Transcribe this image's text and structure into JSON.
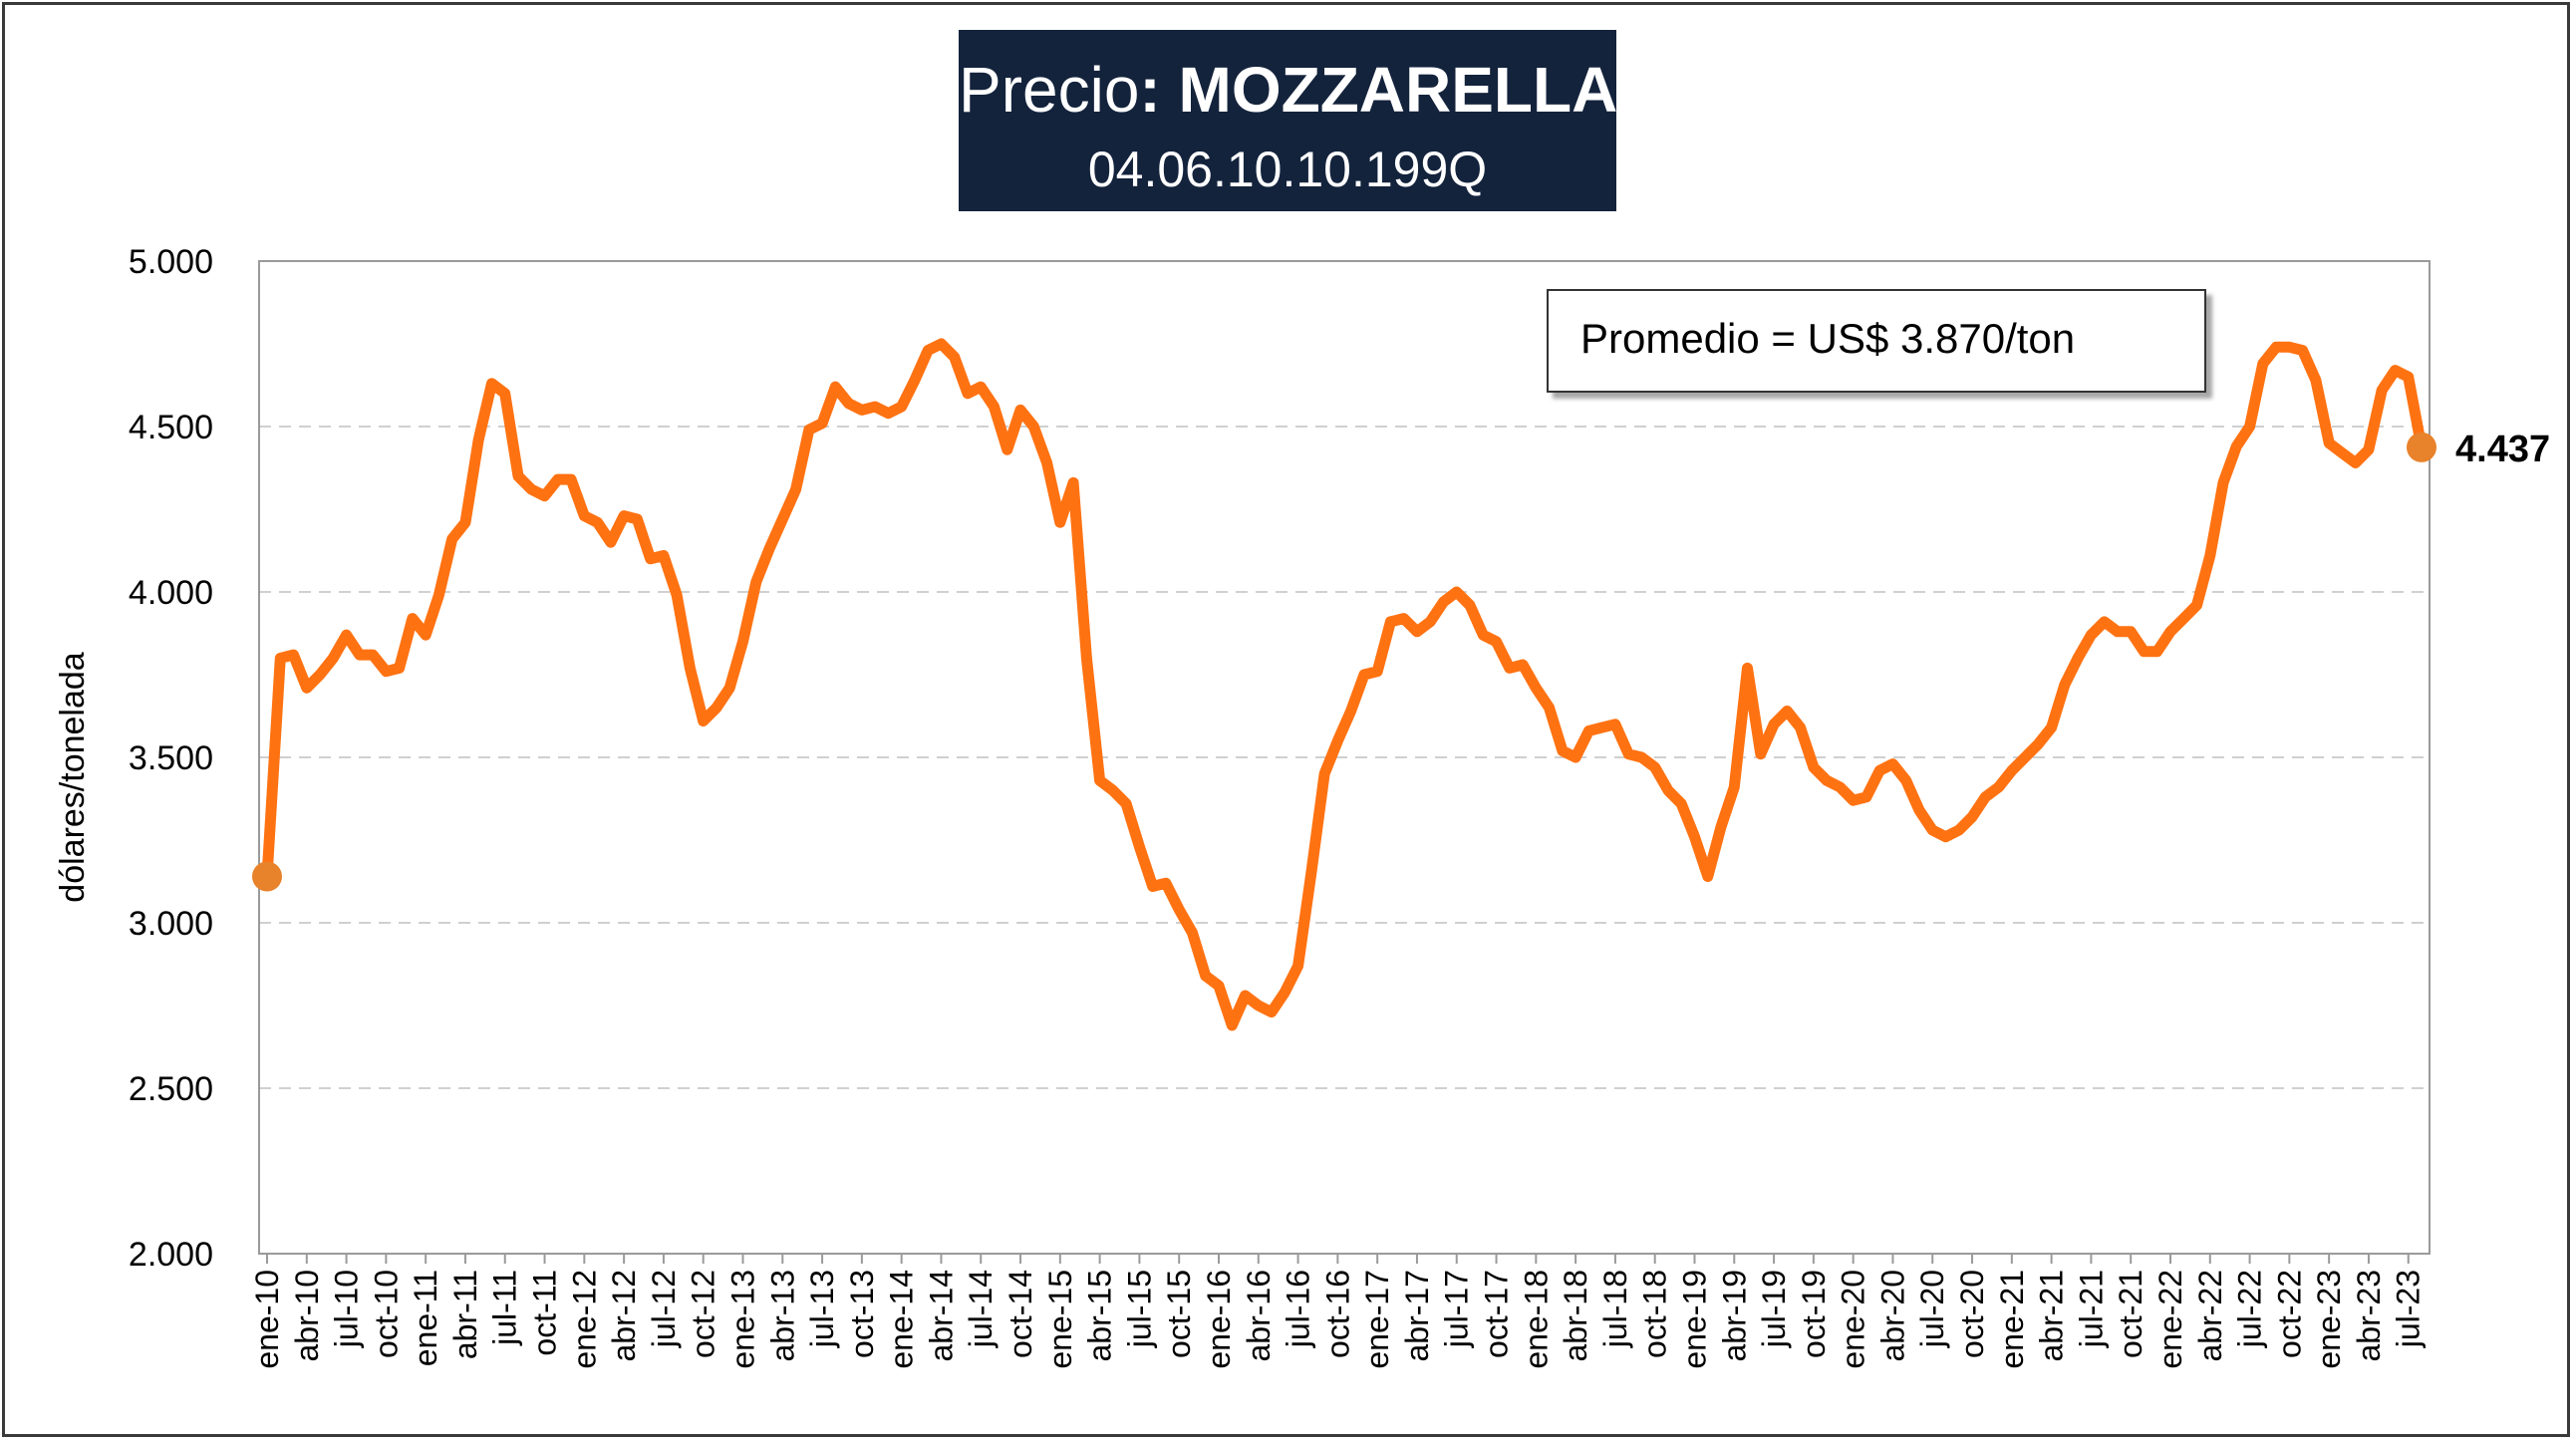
{
  "header": {
    "title_prefix": "Precio",
    "title_bold": ": MOZZARELLA",
    "subtitle": "04.06.10.10.199Q"
  },
  "annotation": {
    "average_text": "Promedio = US$ 3.870/ton"
  },
  "colors": {
    "line": "#ff7212",
    "marker": "#e8822b",
    "title_bg": "#14233c",
    "grid": "#d0d0d0"
  },
  "chart_data": {
    "type": "line",
    "title": "Precio: MOZZARELLA",
    "subtitle": "04.06.10.10.199Q",
    "xlabel": "",
    "ylabel": "dólares/tonelada",
    "ylim": [
      2000,
      5000
    ],
    "yticks": [
      2000,
      2500,
      3000,
      3500,
      4000,
      4500,
      5000
    ],
    "ytick_labels": [
      "2.000",
      "2.500",
      "3.000",
      "3.500",
      "4.000",
      "4.500",
      "5.000"
    ],
    "xtick_labels": [
      "ene-10",
      "abr-10",
      "jul-10",
      "oct-10",
      "ene-11",
      "abr-11",
      "jul-11",
      "oct-11",
      "ene-12",
      "abr-12",
      "jul-12",
      "oct-12",
      "ene-13",
      "abr-13",
      "jul-13",
      "oct-13",
      "ene-14",
      "abr-14",
      "jul-14",
      "oct-14",
      "ene-15",
      "abr-15",
      "jul-15",
      "oct-15",
      "ene-16",
      "abr-16",
      "jul-16",
      "oct-16",
      "ene-17",
      "abr-17",
      "jul-17",
      "oct-17",
      "ene-18",
      "abr-18",
      "jul-18",
      "oct-18",
      "ene-19",
      "abr-19",
      "jul-19",
      "oct-19",
      "ene-20",
      "abr-20",
      "jul-20",
      "oct-20",
      "ene-21",
      "abr-21",
      "jul-21",
      "oct-21",
      "ene-22",
      "abr-22",
      "jul-22",
      "oct-22",
      "ene-23",
      "abr-23",
      "jul-23"
    ],
    "grid": true,
    "end_label": "4.437",
    "series": [
      {
        "values": [
          3140,
          3800,
          3810,
          3710,
          3750,
          3800,
          3870,
          3810,
          3810,
          3760,
          3770,
          3920,
          3870,
          3990,
          4160,
          4210,
          4460,
          4630,
          4600,
          4350,
          4310,
          4290,
          4340,
          4340,
          4230,
          4210,
          4150,
          4230,
          4220,
          4100,
          4110,
          3990,
          3770,
          3610,
          3650,
          3710,
          3850,
          4030,
          4130,
          4220,
          4310,
          4490,
          4510,
          4620,
          4570,
          4550,
          4560,
          4540,
          4560,
          4640,
          4730,
          4750,
          4710,
          4600,
          4620,
          4560,
          4430,
          4550,
          4500,
          4390,
          4210,
          4330,
          3800,
          3430,
          3400,
          3360,
          3230,
          3110,
          3120,
          3040,
          2970,
          2840,
          2810,
          2690,
          2780,
          2750,
          2730,
          2790,
          2870,
          3150,
          3450,
          3550,
          3640,
          3750,
          3760,
          3910,
          3920,
          3880,
          3910,
          3970,
          4000,
          3960,
          3870,
          3850,
          3770,
          3780,
          3710,
          3650,
          3520,
          3500,
          3580,
          3590,
          3600,
          3510,
          3500,
          3470,
          3400,
          3360,
          3260,
          3140,
          3290,
          3410,
          3770,
          3510,
          3600,
          3640,
          3590,
          3470,
          3430,
          3410,
          3370,
          3380,
          3460,
          3480,
          3430,
          3340,
          3280,
          3260,
          3280,
          3320,
          3380,
          3410,
          3460,
          3500,
          3540,
          3590,
          3720,
          3800,
          3870,
          3910,
          3880,
          3880,
          3820,
          3820,
          3880,
          3920,
          3960,
          4110,
          4330,
          4440,
          4500,
          4690,
          4740,
          4740,
          4730,
          4640,
          4450,
          4420,
          4390,
          4430,
          4610,
          4670,
          4650,
          4437
        ]
      }
    ]
  }
}
